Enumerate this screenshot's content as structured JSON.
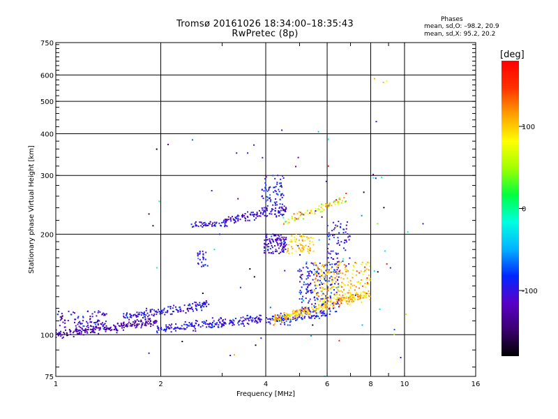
{
  "title": "Tromsø 20161026 18:34:00–18:35:43",
  "subtitle": "RwPretec (8p)",
  "stats": {
    "title": "Phases",
    "o_line": "mean, sd,O: –98.2, 20.9",
    "x_line": "mean, sd,X:  95.2, 20.2"
  },
  "colorbar": {
    "unit": "[deg]",
    "range": [
      -180,
      180
    ],
    "ticks": [
      {
        "value": 100,
        "label": "100"
      },
      {
        "value": 0,
        "label": "0"
      },
      {
        "value": -100,
        "label": "-100"
      }
    ],
    "colors": [
      "#000000",
      "#3c0070",
      "#5a00c8",
      "#0028ff",
      "#00b4ff",
      "#00ffe0",
      "#00ff40",
      "#a0ff00",
      "#ffff00",
      "#ffa000",
      "#ff3000",
      "#ff0000"
    ]
  },
  "chart_data": {
    "type": "scatter",
    "xlabel": "Frequency [MHz]",
    "ylabel": "Stationary phase Virtual Height [km]",
    "xscale": "log",
    "yscale": "log",
    "xlim": [
      1,
      16
    ],
    "ylim": [
      75,
      750
    ],
    "xticks": [
      {
        "value": 1,
        "label": "1"
      },
      {
        "value": 2,
        "label": "2"
      },
      {
        "value": 4,
        "label": "4"
      },
      {
        "value": 6,
        "label": "6"
      },
      {
        "value": 8,
        "label": "8"
      },
      {
        "value": 10,
        "label": "10"
      },
      {
        "value": 16,
        "label": "16"
      }
    ],
    "yticks": [
      {
        "value": 75,
        "label": "75"
      },
      {
        "value": 100,
        "label": "100"
      },
      {
        "value": 200,
        "label": "200"
      },
      {
        "value": 300,
        "label": "300"
      },
      {
        "value": 400,
        "label": "400"
      },
      {
        "value": 500,
        "label": "500"
      },
      {
        "value": 600,
        "label": "600"
      },
      {
        "value": 750,
        "label": "750"
      }
    ],
    "grid": true,
    "clusters": [
      {
        "name": "E-layer O trace",
        "x_range": [
          1.0,
          1.95
        ],
        "y_range": [
          100,
          110
        ],
        "shape": "rising",
        "phase": -125,
        "phase_sd": 15,
        "count": 220
      },
      {
        "name": "E-layer O trace upper",
        "x_range": [
          1.0,
          1.4
        ],
        "y_range": [
          105,
          118
        ],
        "shape": "band",
        "phase": -110,
        "phase_sd": 20,
        "count": 90
      },
      {
        "name": "E-layer O trace (blue)",
        "x_range": [
          1.95,
          3.9
        ],
        "y_range": [
          104,
          111
        ],
        "shape": "rising",
        "phase": -98,
        "phase_sd": 12,
        "count": 200
      },
      {
        "name": "Es echo",
        "x_range": [
          1.55,
          2.75
        ],
        "y_range": [
          113,
          123
        ],
        "shape": "rising",
        "phase": -100,
        "phase_sd": 15,
        "count": 150
      },
      {
        "name": "F-layer O trace low",
        "x_range": [
          2.4,
          3.1
        ],
        "y_range": [
          210,
          218
        ],
        "shape": "band",
        "phase": -100,
        "phase_sd": 15,
        "count": 50
      },
      {
        "name": "F-layer O trace",
        "x_range": [
          3.0,
          4.6
        ],
        "y_range": [
          218,
          238
        ],
        "shape": "rising",
        "phase": -108,
        "phase_sd": 14,
        "count": 110
      },
      {
        "name": "F-layer cusp",
        "x_range": [
          3.9,
          4.5
        ],
        "y_range": [
          225,
          300
        ],
        "shape": "band",
        "phase": -95,
        "phase_sd": 15,
        "count": 90
      },
      {
        "name": "F-layer X trace",
        "x_range": [
          4.5,
          6.8
        ],
        "y_range": [
          218,
          255
        ],
        "shape": "rising",
        "phase": 85,
        "phase_sd": 30,
        "count": 80
      },
      {
        "name": "spread O 4 MHz",
        "x_range": [
          3.95,
          4.6
        ],
        "y_range": [
          175,
          200
        ],
        "shape": "band",
        "phase": -110,
        "phase_sd": 15,
        "count": 110
      },
      {
        "name": "spread X 5 MHz",
        "x_range": [
          4.6,
          5.5
        ],
        "y_range": [
          175,
          200
        ],
        "shape": "band",
        "phase": 100,
        "phase_sd": 15,
        "count": 70
      },
      {
        "name": "low F O trace",
        "x_range": [
          4.0,
          6.0
        ],
        "y_range": [
          110,
          115
        ],
        "shape": "rising",
        "phase": -95,
        "phase_sd": 15,
        "count": 110
      },
      {
        "name": "low F X trace",
        "x_range": [
          4.2,
          7.8
        ],
        "y_range": [
          111,
          132
        ],
        "shape": "rising",
        "phase": 105,
        "phase_sd": 20,
        "count": 240
      },
      {
        "name": "spread 5-6 MHz",
        "x_range": [
          5.0,
          6.5
        ],
        "y_range": [
          115,
          165
        ],
        "shape": "band",
        "phase": -95,
        "phase_sd": 20,
        "count": 200
      },
      {
        "name": "spread X 6-8 MHz",
        "x_range": [
          5.5,
          8.0
        ],
        "y_range": [
          125,
          165
        ],
        "shape": "band",
        "phase": 100,
        "phase_sd": 20,
        "count": 220
      },
      {
        "name": "trace 6 MHz up",
        "x_range": [
          6.0,
          7.0
        ],
        "y_range": [
          160,
          220
        ],
        "shape": "band",
        "phase": -100,
        "phase_sd": 20,
        "count": 70
      },
      {
        "name": "Es 2.6 MHz",
        "x_range": [
          2.55,
          2.75
        ],
        "y_range": [
          160,
          178
        ],
        "shape": "band",
        "phase": -100,
        "phase_sd": 15,
        "count": 25
      },
      {
        "name": "scattered",
        "x_range": [
          1.9,
          10.5
        ],
        "y_range": [
          85,
          420
        ],
        "shape": "band",
        "phase": -90,
        "phase_sd": 60,
        "count": 60
      }
    ],
    "points": [
      {
        "x": 8.2,
        "y": 585,
        "phase": 110
      },
      {
        "x": 8.7,
        "y": 570,
        "phase": 105
      },
      {
        "x": 8.9,
        "y": 575,
        "phase": 80
      },
      {
        "x": 8.3,
        "y": 435,
        "phase": -95
      },
      {
        "x": 4.45,
        "y": 410,
        "phase": -100
      },
      {
        "x": 6.05,
        "y": 385,
        "phase": -5
      },
      {
        "x": 8.6,
        "y": 296,
        "phase": -10
      },
      {
        "x": 6.05,
        "y": 320,
        "phase": 160
      },
      {
        "x": 8.9,
        "y": 163,
        "phase": 170
      },
      {
        "x": 11.3,
        "y": 215,
        "phase": -100
      },
      {
        "x": 1.85,
        "y": 230,
        "phase": -150
      },
      {
        "x": 1.9,
        "y": 212,
        "phase": -160
      },
      {
        "x": 3.25,
        "y": 87,
        "phase": 110
      },
      {
        "x": 1.85,
        "y": 88,
        "phase": -100
      },
      {
        "x": 6.5,
        "y": 96,
        "phase": 160
      },
      {
        "x": 3.55,
        "y": 350,
        "phase": -95
      },
      {
        "x": 3.7,
        "y": 370,
        "phase": -98
      },
      {
        "x": 3.3,
        "y": 350,
        "phase": -100
      },
      {
        "x": 2.85,
        "y": 180,
        "phase": -30
      },
      {
        "x": 2.95,
        "y": 200,
        "phase": -95
      },
      {
        "x": 2.8,
        "y": 270,
        "phase": -100
      },
      {
        "x": 6.8,
        "y": 265,
        "phase": 150
      },
      {
        "x": 5.9,
        "y": 75,
        "phase": -40
      }
    ]
  }
}
